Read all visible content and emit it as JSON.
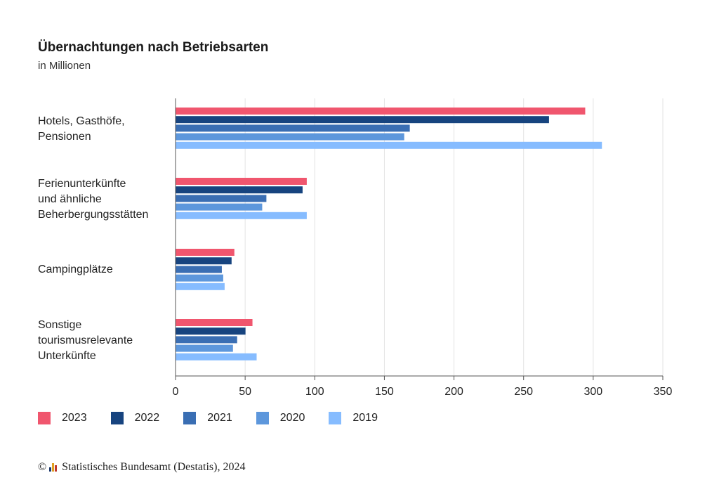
{
  "chart": {
    "title": "Übernachtungen nach Betriebsarten",
    "subtitle": "in Millionen"
  },
  "footer": {
    "copyright_symbol": "©",
    "text": "Statistisches Bundesamt (Destatis), 2024"
  },
  "chart_data": {
    "type": "bar",
    "orientation": "horizontal",
    "title": "Übernachtungen nach Betriebsarten",
    "subtitle": "in Millionen",
    "categories": [
      "Hotels, Gasthöfe,\nPensionen",
      "Ferienunterkünfte\nund ähnliche\nBeherbergungsstätten",
      "Campingplätze",
      "Sonstige\ntourismusrelevante\nUnterkünfte"
    ],
    "series": [
      {
        "name": "2023",
        "color": "#f0566e",
        "values": [
          294,
          94,
          42,
          55
        ]
      },
      {
        "name": "2022",
        "color": "#17447f",
        "values": [
          268,
          91,
          40,
          50
        ]
      },
      {
        "name": "2021",
        "color": "#3a6eb3",
        "values": [
          168,
          65,
          33,
          44
        ]
      },
      {
        "name": "2020",
        "color": "#5d97dc",
        "values": [
          164,
          62,
          34,
          41
        ]
      },
      {
        "name": "2019",
        "color": "#86bcff",
        "values": [
          306,
          94,
          35,
          58
        ]
      }
    ],
    "xlim": [
      0,
      350
    ],
    "xticks": [
      0,
      50,
      100,
      150,
      200,
      250,
      300,
      350
    ],
    "grid": true,
    "legend_position": "bottom-left"
  }
}
